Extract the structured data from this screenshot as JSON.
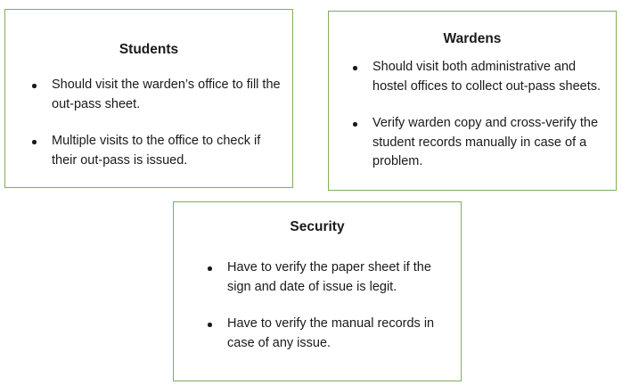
{
  "students": {
    "title": "Students",
    "points": [
      "Should visit the warden’s office to fill the out-pass sheet.",
      "Multiple visits to the office to check if their out-pass is issued."
    ]
  },
  "wardens": {
    "title": "Wardens",
    "points": [
      "Should visit both administrative and hostel offices to collect out-pass sheets.",
      "Verify warden copy and cross-verify the student records manually in case of a problem."
    ]
  },
  "security": {
    "title": "Security",
    "points": [
      "Have to verify the paper sheet if the sign and date of issue is legit.",
      "Have to verify the manual records in case of any issue."
    ]
  }
}
